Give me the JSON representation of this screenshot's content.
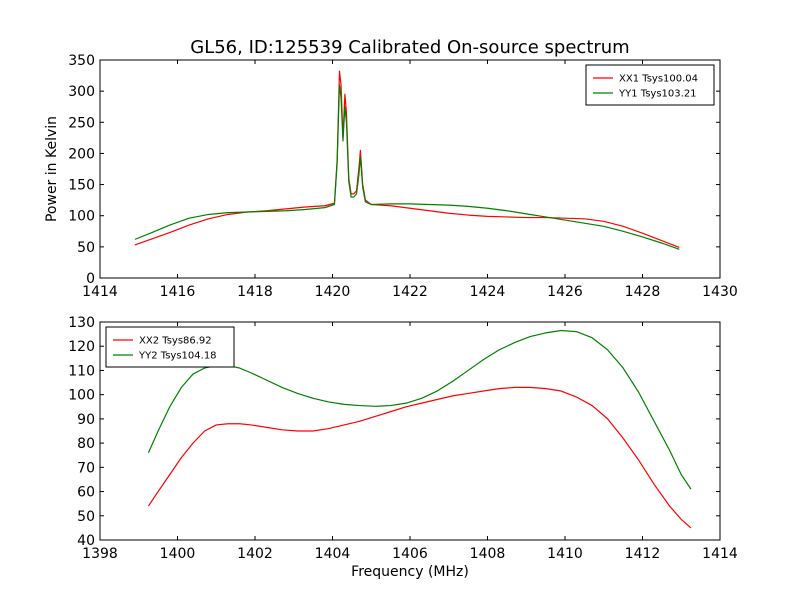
{
  "figure": {
    "title": "GL56, ID:125539 Calibrated On-source spectrum",
    "xlabel": "Frequency (MHz)"
  },
  "chart_data": [
    {
      "type": "line",
      "ylabel": "Power in Kelvin",
      "xlim": [
        1414,
        1430
      ],
      "ylim": [
        0,
        350
      ],
      "xticks": [
        1414,
        1416,
        1418,
        1420,
        1422,
        1424,
        1426,
        1428,
        1430
      ],
      "yticks": [
        0,
        50,
        100,
        150,
        200,
        250,
        300,
        350
      ],
      "legend": "top-right",
      "series": [
        {
          "name": "XX1 Tsys100.04",
          "color": "#ff0000",
          "x": [
            1414.9,
            1415.3,
            1415.8,
            1416.3,
            1416.8,
            1417.3,
            1417.8,
            1418.3,
            1418.8,
            1419.3,
            1419.8,
            1420.05,
            1420.12,
            1420.18,
            1420.22,
            1420.27,
            1420.32,
            1420.36,
            1420.42,
            1420.48,
            1420.55,
            1420.62,
            1420.68,
            1420.72,
            1420.78,
            1420.85,
            1421.0,
            1421.5,
            1422.0,
            1422.5,
            1423.0,
            1423.5,
            1424.0,
            1424.5,
            1425.0,
            1425.5,
            1426.0,
            1426.5,
            1427.0,
            1427.5,
            1428.0,
            1428.5,
            1428.95
          ],
          "y": [
            53,
            62,
            73,
            85,
            95,
            102,
            106,
            108,
            111,
            114,
            116,
            120,
            190,
            332,
            310,
            225,
            295,
            265,
            160,
            135,
            135,
            140,
            175,
            205,
            150,
            125,
            118,
            116,
            112,
            108,
            104,
            101,
            99,
            98,
            97,
            97,
            96,
            95,
            91,
            83,
            72,
            60,
            49
          ]
        },
        {
          "name": "YY1 Tsys103.21",
          "color": "#008000",
          "x": [
            1414.9,
            1415.3,
            1415.8,
            1416.3,
            1416.8,
            1417.3,
            1417.8,
            1418.3,
            1418.8,
            1419.3,
            1419.8,
            1420.05,
            1420.12,
            1420.18,
            1420.22,
            1420.27,
            1420.32,
            1420.36,
            1420.42,
            1420.48,
            1420.55,
            1420.62,
            1420.68,
            1420.72,
            1420.78,
            1420.85,
            1421.0,
            1421.5,
            1422.0,
            1422.5,
            1423.0,
            1423.5,
            1424.0,
            1424.5,
            1425.0,
            1425.5,
            1426.0,
            1426.5,
            1427.0,
            1427.5,
            1428.0,
            1428.5,
            1428.95
          ],
          "y": [
            62,
            72,
            85,
            96,
            102,
            105,
            106,
            107,
            108,
            110,
            113,
            118,
            185,
            310,
            290,
            220,
            275,
            250,
            155,
            130,
            130,
            135,
            165,
            195,
            145,
            122,
            118,
            119,
            119,
            118,
            117,
            115,
            112,
            108,
            103,
            98,
            93,
            88,
            83,
            75,
            66,
            56,
            46
          ]
        }
      ]
    },
    {
      "type": "line",
      "ylabel": "",
      "xlim": [
        1398,
        1414
      ],
      "ylim": [
        40,
        130
      ],
      "xticks": [
        1398,
        1400,
        1402,
        1404,
        1406,
        1408,
        1410,
        1412,
        1414
      ],
      "yticks": [
        40,
        50,
        60,
        70,
        80,
        90,
        100,
        110,
        120,
        130
      ],
      "legend": "top-left",
      "series": [
        {
          "name": "XX2 Tsys86.92",
          "color": "#ff0000",
          "x": [
            1399.25,
            1399.5,
            1399.8,
            1400.1,
            1400.4,
            1400.7,
            1401.0,
            1401.3,
            1401.6,
            1401.9,
            1402.3,
            1402.7,
            1403.1,
            1403.5,
            1403.9,
            1404.3,
            1404.7,
            1405.1,
            1405.5,
            1405.9,
            1406.3,
            1406.7,
            1407.1,
            1407.5,
            1407.9,
            1408.3,
            1408.7,
            1409.1,
            1409.5,
            1409.9,
            1410.3,
            1410.7,
            1411.1,
            1411.5,
            1411.9,
            1412.3,
            1412.7,
            1413.0,
            1413.25
          ],
          "y": [
            54,
            60,
            67,
            74,
            80,
            85,
            87.5,
            88,
            88,
            87.5,
            86.5,
            85.5,
            85,
            85,
            86,
            87.5,
            89,
            91,
            93,
            95,
            96.5,
            98,
            99.5,
            100.5,
            101.5,
            102.5,
            103,
            103,
            102.5,
            101.5,
            99,
            95.5,
            90,
            82,
            73,
            63,
            54,
            48.5,
            45
          ]
        },
        {
          "name": "YY2 Tsys104.18",
          "color": "#008000",
          "x": [
            1399.25,
            1399.5,
            1399.8,
            1400.1,
            1400.4,
            1400.7,
            1401.0,
            1401.3,
            1401.6,
            1401.9,
            1402.3,
            1402.7,
            1403.1,
            1403.5,
            1403.9,
            1404.3,
            1404.7,
            1405.1,
            1405.5,
            1405.9,
            1406.3,
            1406.7,
            1407.1,
            1407.5,
            1407.9,
            1408.3,
            1408.7,
            1409.1,
            1409.5,
            1409.9,
            1410.3,
            1410.7,
            1411.1,
            1411.5,
            1411.9,
            1412.3,
            1412.7,
            1413.0,
            1413.25
          ],
          "y": [
            76,
            85,
            95,
            103,
            108.5,
            111,
            112,
            112,
            111,
            109,
            106,
            103,
            100.5,
            98.5,
            97,
            96,
            95.5,
            95.2,
            95.5,
            96.5,
            98.5,
            101.5,
            105.5,
            110,
            114.5,
            118.5,
            121.5,
            124,
            125.5,
            126.5,
            126,
            123.5,
            118.5,
            111,
            101,
            89,
            77,
            67,
            61
          ]
        }
      ]
    }
  ]
}
